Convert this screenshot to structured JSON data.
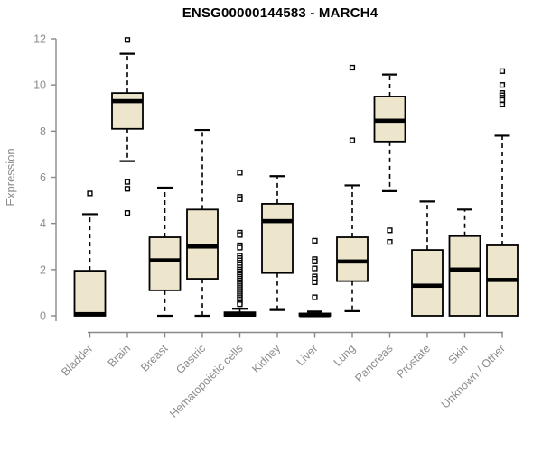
{
  "colors": {
    "box_fill": "#EDE6CC",
    "box_stroke": "#000000",
    "median": "#000000",
    "whisker": "#000000",
    "axis": "#888888",
    "tick_label": "#8C8C8C",
    "title": "#000000",
    "background": "#FFFFFF"
  },
  "chart_data": {
    "type": "boxplot",
    "title": "ENSG00000144583 - MARCH4",
    "xlabel": "",
    "ylabel": "Expression",
    "ylim": [
      0,
      12
    ],
    "yticks": [
      0,
      2,
      4,
      6,
      8,
      10,
      12
    ],
    "grid": false,
    "legend": "none",
    "categories": [
      "Bladder",
      "Brain",
      "Breast",
      "Gastric",
      "Hematopoietic cells",
      "Kidney",
      "Liver",
      "Lung",
      "Pancreas",
      "Prostate",
      "Skin",
      "Unknown / Other"
    ],
    "series": [
      {
        "category": "Bladder",
        "whisker_low": 0,
        "q1": 0,
        "median": 0.07,
        "q3": 1.95,
        "whisker_high": 4.4,
        "outliers": [
          5.3
        ]
      },
      {
        "category": "Brain",
        "whisker_low": 6.7,
        "q1": 8.1,
        "median": 9.3,
        "q3": 9.65,
        "whisker_high": 11.35,
        "outliers": [
          11.95,
          5.8,
          5.5,
          4.45
        ]
      },
      {
        "category": "Breast",
        "whisker_low": 0,
        "q1": 1.1,
        "median": 2.4,
        "q3": 3.4,
        "whisker_high": 5.55,
        "outliers": []
      },
      {
        "category": "Gastric",
        "whisker_low": 0,
        "q1": 1.6,
        "median": 3.0,
        "q3": 4.6,
        "whisker_high": 8.05,
        "outliers": []
      },
      {
        "category": "Hematopoietic cells",
        "whisker_low": 0,
        "q1": 0,
        "median": 0.05,
        "q3": 0.15,
        "whisker_high": 0.3,
        "outliers": [
          6.2,
          5.15,
          5.05,
          3.6,
          3.5,
          3.05,
          2.95,
          2.6,
          2.5,
          2.4,
          2.3,
          2.2,
          2.1,
          2.0,
          1.92,
          1.84,
          1.76,
          1.68,
          1.6,
          1.52,
          1.44,
          1.36,
          1.28,
          1.2,
          1.12,
          1.04,
          0.96,
          0.88,
          0.8,
          0.72,
          0.64,
          0.56,
          0.5
        ]
      },
      {
        "category": "Kidney",
        "whisker_low": 0.25,
        "q1": 1.85,
        "median": 4.1,
        "q3": 4.85,
        "whisker_high": 6.05,
        "outliers": []
      },
      {
        "category": "Liver",
        "whisker_low": 0,
        "q1": 0,
        "median": 0.03,
        "q3": 0.1,
        "whisker_high": 0.18,
        "outliers": [
          3.25,
          2.45,
          2.35,
          2.05,
          1.7,
          1.6,
          1.45,
          0.8
        ]
      },
      {
        "category": "Lung",
        "whisker_low": 0.2,
        "q1": 1.5,
        "median": 2.35,
        "q3": 3.4,
        "whisker_high": 5.65,
        "outliers": [
          10.75,
          7.6
        ]
      },
      {
        "category": "Pancreas",
        "whisker_low": 5.4,
        "q1": 7.55,
        "median": 8.45,
        "q3": 9.5,
        "whisker_high": 10.45,
        "outliers": [
          3.7,
          3.2
        ]
      },
      {
        "category": "Prostate",
        "whisker_low": 0,
        "q1": 0,
        "median": 1.3,
        "q3": 2.85,
        "whisker_high": 4.95,
        "outliers": []
      },
      {
        "category": "Skin",
        "whisker_low": 0,
        "q1": 0,
        "median": 2.0,
        "q3": 3.45,
        "whisker_high": 4.6,
        "outliers": []
      },
      {
        "category": "Unknown / Other",
        "whisker_low": 0,
        "q1": 0,
        "median": 1.55,
        "q3": 3.05,
        "whisker_high": 7.8,
        "outliers": [
          10.6,
          10.0,
          9.65,
          9.55,
          9.45,
          9.35,
          9.15
        ]
      }
    ]
  }
}
